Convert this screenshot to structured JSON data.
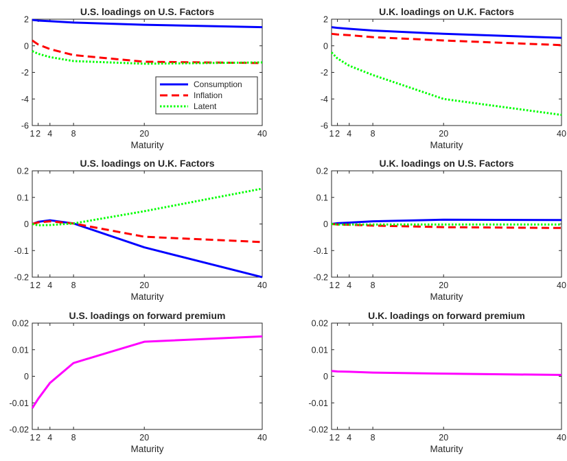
{
  "chart_data": [
    {
      "type": "line",
      "title": "U.S. loadings on U.S. Factors",
      "xlabel": "Maturity",
      "ylabel": "",
      "xlim": [
        1,
        40
      ],
      "ylim": [
        -6,
        2
      ],
      "xticks": [
        1,
        2,
        4,
        8,
        20,
        40
      ],
      "xtick_labels": [
        "1",
        "2",
        "4",
        "8",
        "20",
        "40"
      ],
      "yticks": [
        -6,
        -4,
        -2,
        0,
        2
      ],
      "ytick_labels": [
        "-6",
        "-4",
        "-2",
        "0",
        "2"
      ],
      "x": [
        1,
        2,
        4,
        8,
        20,
        40
      ],
      "legend": {
        "position": "center-right"
      },
      "series": [
        {
          "name": "Consumption",
          "color": "#0000ff",
          "style": "solid",
          "values": [
            1.95,
            1.9,
            1.85,
            1.75,
            1.58,
            1.4
          ]
        },
        {
          "name": "Inflation",
          "color": "#ff0000",
          "style": "dashed",
          "values": [
            0.4,
            0.1,
            -0.25,
            -0.7,
            -1.2,
            -1.3
          ]
        },
        {
          "name": "Latent",
          "color": "#00ff00",
          "style": "dotted",
          "values": [
            -0.4,
            -0.6,
            -0.85,
            -1.15,
            -1.35,
            -1.25
          ]
        }
      ]
    },
    {
      "type": "line",
      "title": "U.K. loadings on U.K. Factors",
      "xlabel": "Maturity",
      "ylabel": "",
      "xlim": [
        1,
        40
      ],
      "ylim": [
        -6,
        2
      ],
      "xticks": [
        1,
        2,
        4,
        8,
        20,
        40
      ],
      "xtick_labels": [
        "1",
        "2",
        "4",
        "8",
        "20",
        "40"
      ],
      "yticks": [
        -6,
        -4,
        -2,
        0,
        2
      ],
      "ytick_labels": [
        "-6",
        "-4",
        "-2",
        "0",
        "2"
      ],
      "x": [
        1,
        2,
        4,
        8,
        20,
        40
      ],
      "series": [
        {
          "color": "#0000ff",
          "style": "solid",
          "values": [
            1.4,
            1.35,
            1.28,
            1.15,
            0.9,
            0.6
          ]
        },
        {
          "color": "#ff0000",
          "style": "dashed",
          "values": [
            0.9,
            0.85,
            0.8,
            0.65,
            0.4,
            0.05
          ]
        },
        {
          "color": "#00ff00",
          "style": "dotted",
          "values": [
            -0.5,
            -0.95,
            -1.5,
            -2.2,
            -4.0,
            -5.2
          ]
        }
      ]
    },
    {
      "type": "line",
      "title": "U.S. loadings on U.K. Factors",
      "xlabel": "Maturity",
      "ylabel": "",
      "xlim": [
        1,
        40
      ],
      "ylim": [
        -0.2,
        0.2
      ],
      "xticks": [
        1,
        2,
        4,
        8,
        20,
        40
      ],
      "xtick_labels": [
        "1",
        "2",
        "4",
        "8",
        "20",
        "40"
      ],
      "yticks": [
        -0.2,
        -0.1,
        0,
        0.1,
        0.2
      ],
      "ytick_labels": [
        "-0.2",
        "-0.1",
        "0",
        "0.1",
        "0.2"
      ],
      "x": [
        1,
        2,
        4,
        8,
        20,
        40
      ],
      "series": [
        {
          "color": "#0000ff",
          "style": "solid",
          "values": [
            0.0,
            0.008,
            0.014,
            0.002,
            -0.088,
            -0.2
          ]
        },
        {
          "color": "#ff0000",
          "style": "dashed",
          "values": [
            0.0,
            0.006,
            0.01,
            0.002,
            -0.048,
            -0.068
          ]
        },
        {
          "color": "#00ff00",
          "style": "dotted",
          "values": [
            0.0,
            -0.005,
            -0.004,
            0.002,
            0.048,
            0.133
          ]
        }
      ]
    },
    {
      "type": "line",
      "title": "U.K. loadings on U.S. Factors",
      "xlabel": "Maturity",
      "ylabel": "",
      "xlim": [
        1,
        40
      ],
      "ylim": [
        -0.2,
        0.2
      ],
      "xticks": [
        1,
        2,
        4,
        8,
        20,
        40
      ],
      "xtick_labels": [
        "1",
        "2",
        "4",
        "8",
        "20",
        "40"
      ],
      "yticks": [
        -0.2,
        -0.1,
        0,
        0.1,
        0.2
      ],
      "ytick_labels": [
        "-0.2",
        "-0.1",
        "0",
        "0.1",
        "0.2"
      ],
      "x": [
        1,
        2,
        4,
        8,
        20,
        40
      ],
      "series": [
        {
          "color": "#0000ff",
          "style": "solid",
          "values": [
            0.0,
            0.003,
            0.005,
            0.01,
            0.016,
            0.015
          ]
        },
        {
          "color": "#ff0000",
          "style": "dashed",
          "values": [
            0.0,
            -0.002,
            -0.003,
            -0.006,
            -0.012,
            -0.015
          ]
        },
        {
          "color": "#00ff00",
          "style": "dotted",
          "values": [
            0.0,
            -0.002,
            -0.002,
            -0.002,
            -0.002,
            -0.002
          ]
        }
      ]
    },
    {
      "type": "line",
      "title": "U.S. loadings on forward premium",
      "xlabel": "Maturity",
      "ylabel": "",
      "xlim": [
        1,
        40
      ],
      "ylim": [
        -0.02,
        0.02
      ],
      "xticks": [
        1,
        2,
        4,
        8,
        20,
        40
      ],
      "xtick_labels": [
        "1",
        "2",
        "4",
        "8",
        "20",
        "40"
      ],
      "yticks": [
        -0.02,
        -0.01,
        0,
        0.01,
        0.02
      ],
      "ytick_labels": [
        "-0.02",
        "-0.01",
        "0",
        "0.01",
        "0.02"
      ],
      "x": [
        1,
        2,
        4,
        8,
        20,
        40
      ],
      "series": [
        {
          "color": "#ff00ff",
          "style": "solid",
          "values": [
            -0.012,
            -0.0085,
            -0.0025,
            0.005,
            0.013,
            0.015
          ]
        }
      ]
    },
    {
      "type": "line",
      "title": "U.K. loadings on forward premium",
      "xlabel": "Maturity",
      "ylabel": "",
      "xlim": [
        1,
        40
      ],
      "ylim": [
        -0.02,
        0.02
      ],
      "xticks": [
        1,
        2,
        4,
        8,
        20,
        40
      ],
      "xtick_labels": [
        "1",
        "2",
        "4",
        "8",
        "20",
        "40"
      ],
      "yticks": [
        -0.02,
        -0.01,
        0,
        0.01,
        0.02
      ],
      "ytick_labels": [
        "-0.02",
        "-0.01",
        "0",
        "0.01",
        "0.02"
      ],
      "x": [
        1,
        2,
        4,
        8,
        20,
        40
      ],
      "series": [
        {
          "color": "#ff00ff",
          "style": "solid",
          "values": [
            0.002,
            0.0018,
            0.0017,
            0.0014,
            0.001,
            0.0005
          ]
        }
      ]
    }
  ]
}
